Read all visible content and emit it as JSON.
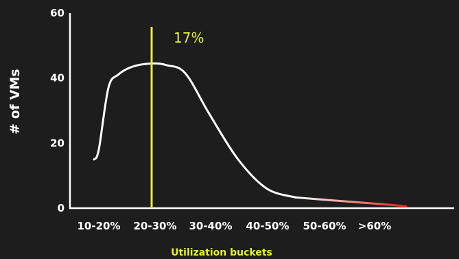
{
  "chart_data": {
    "type": "line",
    "title": "",
    "xlabel": "Utilization buckets",
    "ylabel": "# of VMs",
    "ylim": [
      0,
      60
    ],
    "yticks": [
      0,
      20,
      40,
      60
    ],
    "categories": [
      "10-20%",
      "20-30%",
      "30-40%",
      "40-50%",
      "50-60%",
      ">60%"
    ],
    "series": [
      {
        "points": [
          {
            "x": 5,
            "y": 15
          },
          {
            "x": 6,
            "y": 18
          },
          {
            "x": 8,
            "y": 37
          },
          {
            "x": 10,
            "y": 41
          },
          {
            "x": 13,
            "y": 43.5
          },
          {
            "x": 17,
            "y": 44.5
          },
          {
            "x": 20,
            "y": 44
          },
          {
            "x": 24,
            "y": 41.5
          },
          {
            "x": 29,
            "y": 29
          },
          {
            "x": 35,
            "y": 15
          },
          {
            "x": 41,
            "y": 6
          },
          {
            "x": 47,
            "y": 3.3
          },
          {
            "x": 53,
            "y": 2.6
          },
          {
            "x": 60,
            "y": 1.8
          },
          {
            "x": 66,
            "y": 1.1
          },
          {
            "x": 70,
            "y": 0.6
          }
        ],
        "color": "#ffffff",
        "tail_color": "#e8201a"
      }
    ],
    "marker": {
      "x": 17,
      "label": "17%",
      "color": "#e4ef3a"
    },
    "grid": false,
    "legend": "none",
    "colors": {
      "background": "#1c1d1c",
      "axis": "#ffffff",
      "accent": "#e4ef3a"
    }
  }
}
